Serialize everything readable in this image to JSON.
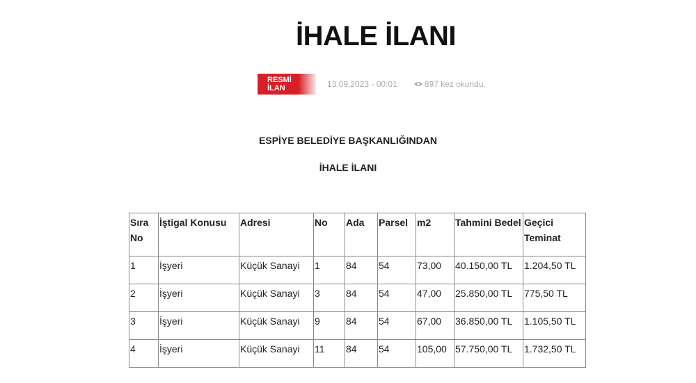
{
  "page_title": "İHALE İLANI",
  "meta": {
    "badge": "RESMİ İLAN",
    "date": "13.09.2023 - 00:01",
    "views": "897 kez okundu.",
    "badge_color": "#d61f26",
    "views_icon": "eye-icon"
  },
  "content": {
    "heading1": "ESPİYE BELEDİYE BAŞKANLIĞINDAN",
    "heading2": "İHALE İLANI"
  },
  "table": {
    "headers": [
      "Sıra No",
      "İştigal Konusu",
      "Adresi",
      "No",
      "Ada",
      "Parsel",
      "m2",
      "Tahmini Bedel",
      "Geçici Teminat"
    ],
    "rows": [
      [
        "1",
        "İşyeri",
        "Küçük Sanayi",
        "1",
        "84",
        "54",
        "73,00",
        "40.150,00 TL",
        "1.204,50 TL"
      ],
      [
        "2",
        "İşyeri",
        "Küçük Sanayi",
        "3",
        "84",
        "54",
        "47,00",
        "25.850,00 TL",
        "775,50 TL"
      ],
      [
        "3",
        "İşyeri",
        "Küçük Sanayi",
        "9",
        "84",
        "54",
        "67,00",
        "36.850,00 TL",
        "1.105,50 TL"
      ],
      [
        "4",
        "İşyeri",
        "Küçük Sanayi",
        "11",
        "84",
        "54",
        "105,00",
        "57.750,00 TL",
        "1.732,50 TL"
      ]
    ]
  }
}
